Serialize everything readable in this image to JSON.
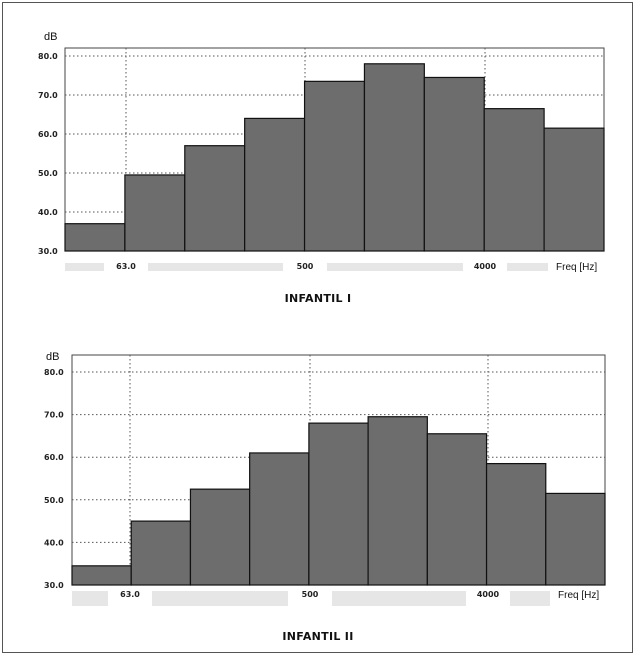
{
  "chart_data": [
    {
      "type": "bar",
      "y_unit_label": "dB",
      "xlabel": "Freq [Hz]",
      "ylim": [
        30,
        82
      ],
      "yticks": [
        "30.0",
        "40.0",
        "50.0",
        "60.0",
        "70.0",
        "80.0"
      ],
      "x_tick_labels": [
        "63.0",
        "500",
        "4000"
      ],
      "values": [
        37,
        49.5,
        57,
        64,
        73.5,
        78,
        74.5,
        66.5,
        61.5
      ],
      "caption": "INFANTIL I",
      "grid": true,
      "bar_color": "#6d6d6d"
    },
    {
      "type": "bar",
      "y_unit_label": "dB",
      "xlabel": "Freq [Hz]",
      "ylim": [
        30,
        82
      ],
      "yticks": [
        "30.0",
        "40.0",
        "50.0",
        "60.0",
        "70.0",
        "80.0"
      ],
      "x_tick_labels": [
        "63.0",
        "500",
        "4000"
      ],
      "values": [
        34.5,
        45,
        52.5,
        61,
        68,
        69.5,
        65.5,
        58.5,
        51.5
      ],
      "caption": "INFANTIL II",
      "grid": true,
      "bar_color": "#6d6d6d"
    }
  ]
}
